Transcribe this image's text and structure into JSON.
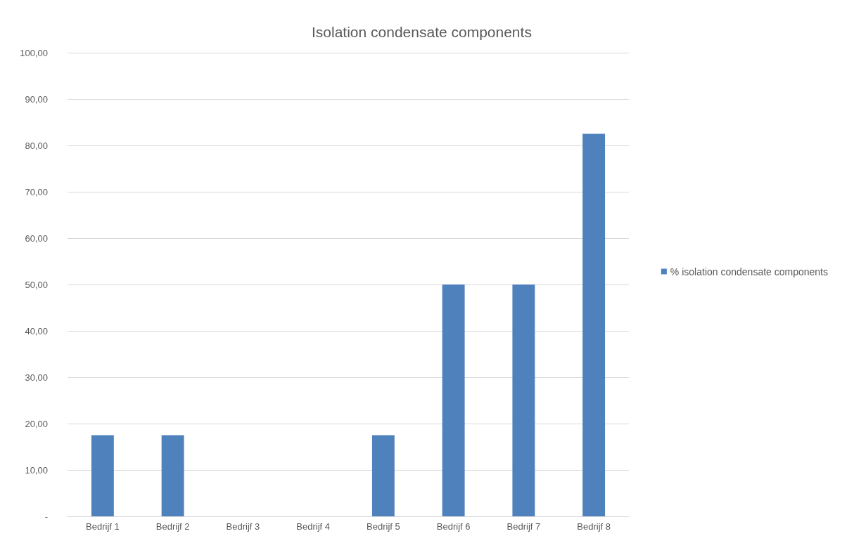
{
  "chart_data": {
    "type": "bar",
    "title": "Isolation condensate components",
    "categories": [
      "Bedrijf 1",
      "Bedrijf 2",
      "Bedrijf 3",
      "Bedrijf 4",
      "Bedrijf 5",
      "Bedrijf 6",
      "Bedrijf 7",
      "Bedrijf 8"
    ],
    "series": [
      {
        "name": "% isolation condensate components",
        "color": "#4f81bd",
        "values": [
          17.5,
          17.5,
          0,
          0,
          17.5,
          50,
          50,
          82.5
        ]
      }
    ],
    "ylim": [
      0,
      100
    ],
    "yticks": [
      {
        "value": 0,
        "label": "-"
      },
      {
        "value": 10,
        "label": "10,00"
      },
      {
        "value": 20,
        "label": "20,00"
      },
      {
        "value": 30,
        "label": "30,00"
      },
      {
        "value": 40,
        "label": "40,00"
      },
      {
        "value": 50,
        "label": "50,00"
      },
      {
        "value": 60,
        "label": "60,00"
      },
      {
        "value": 70,
        "label": "70,00"
      },
      {
        "value": 80,
        "label": "80,00"
      },
      {
        "value": 90,
        "label": "90,00"
      },
      {
        "value": 100,
        "label": "100,00"
      }
    ],
    "grid": "y",
    "legend": "right"
  }
}
